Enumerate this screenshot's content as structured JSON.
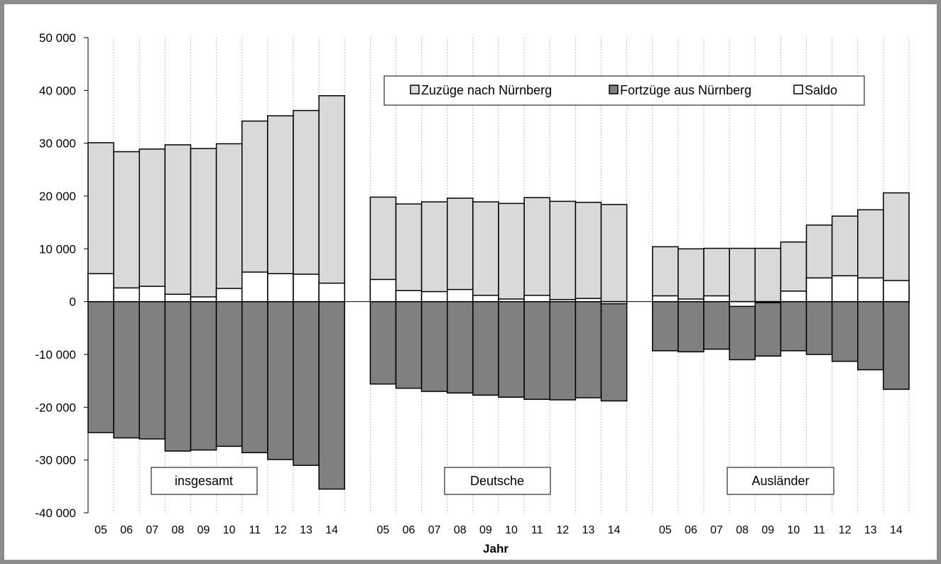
{
  "chart_data": {
    "type": "bar",
    "stacked": true,
    "xlabel": "Jahr",
    "ylabel": "",
    "ylim": [
      -40000,
      50000
    ],
    "yticks": [
      -40000,
      -30000,
      -20000,
      -10000,
      0,
      10000,
      20000,
      30000,
      40000,
      50000
    ],
    "ytick_labels": [
      "-40 000",
      "-30 000",
      "-20 000",
      "-10 000",
      "0",
      "10 000",
      "20 000",
      "30 000",
      "40 000",
      "50 000"
    ],
    "grid": "vertical dotted",
    "legend_placement": "top-center",
    "categories": [
      "05",
      "06",
      "07",
      "08",
      "09",
      "10",
      "11",
      "12",
      "13",
      "14"
    ],
    "series_names": [
      "Zuzüge nach Nürnberg",
      "Fortzüge aus Nürnberg",
      "Saldo"
    ],
    "colors": {
      "zuzuege": "#d9d9d9",
      "fortzuege": "#808080",
      "saldo": "#ffffff",
      "edge": "#000000",
      "grid": "#bfbfbf"
    },
    "groups": [
      {
        "label": "insgesamt",
        "zuzuege": [
          30100,
          28400,
          28900,
          29700,
          29000,
          29900,
          34200,
          35200,
          36200,
          39000
        ],
        "fortzuege": [
          -24800,
          -25800,
          -26000,
          -28300,
          -28100,
          -27400,
          -28600,
          -29900,
          -31000,
          -35500
        ],
        "saldo": [
          5300,
          2600,
          2900,
          1400,
          900,
          2500,
          5600,
          5300,
          5200,
          3500
        ]
      },
      {
        "label": "Deutsche",
        "zuzuege": [
          19800,
          18500,
          18900,
          19600,
          18900,
          18600,
          19700,
          19000,
          18800,
          18400
        ],
        "fortzuege": [
          -15600,
          -16400,
          -17000,
          -17300,
          -17700,
          -18100,
          -18500,
          -18600,
          -18200,
          -18800
        ],
        "saldo": [
          4200,
          2100,
          1900,
          2300,
          1200,
          500,
          1200,
          400,
          600,
          -400
        ]
      },
      {
        "label": "Ausländer",
        "zuzuege": [
          10400,
          10000,
          10100,
          10100,
          10100,
          11300,
          14500,
          16200,
          17400,
          20600
        ],
        "fortzuege": [
          -9300,
          -9500,
          -9000,
          -11000,
          -10300,
          -9300,
          -10000,
          -11300,
          -12900,
          -16600
        ],
        "saldo": [
          1100,
          500,
          1100,
          -900,
          -200,
          2000,
          4500,
          4900,
          4500,
          4000
        ]
      }
    ]
  }
}
